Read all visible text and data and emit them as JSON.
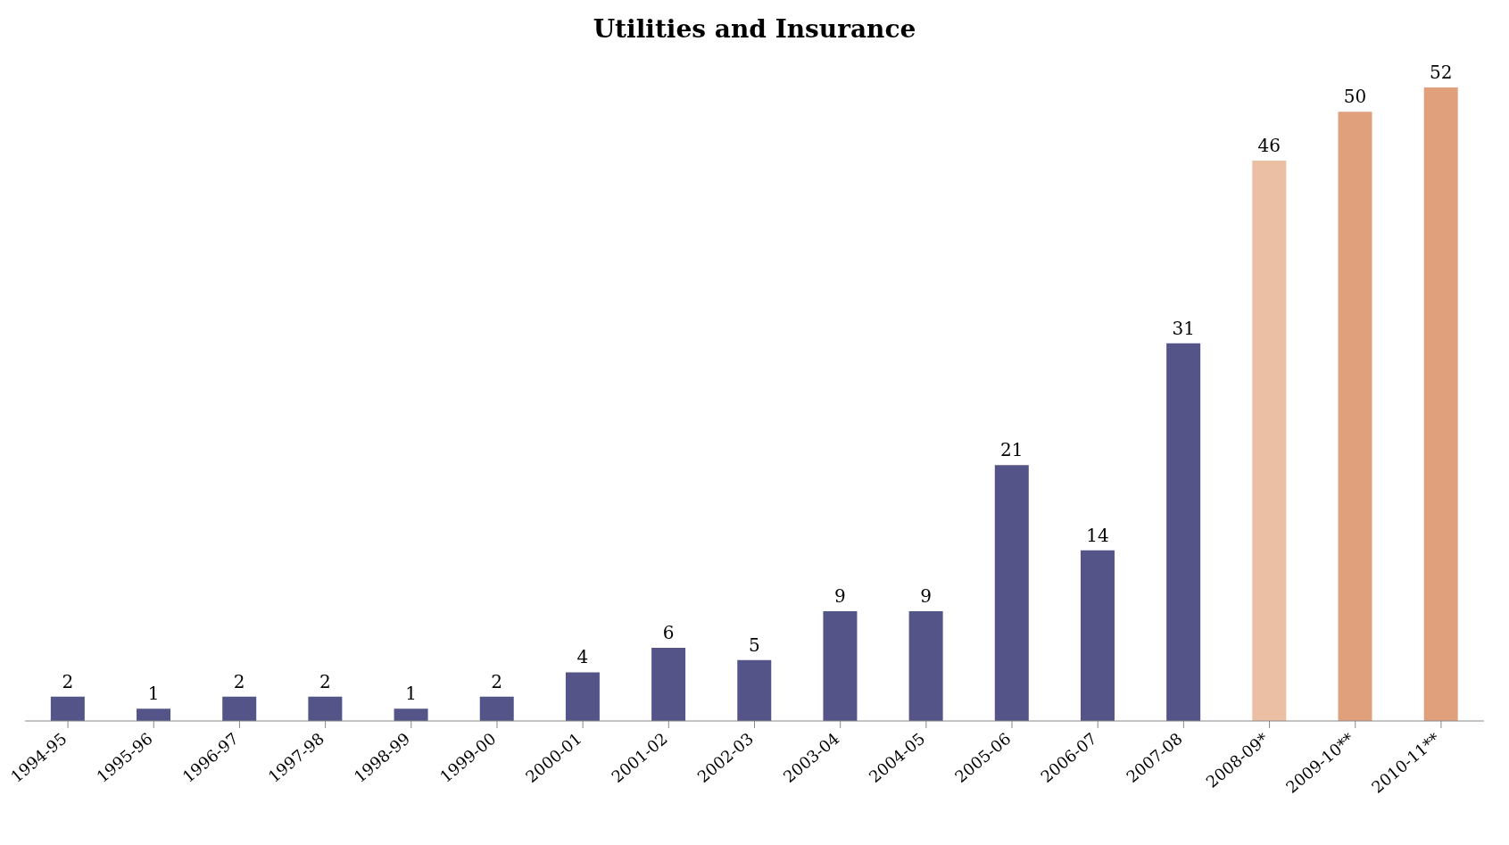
{
  "chart_data": {
    "type": "bar",
    "title": "Utilities and Insurance",
    "categories": [
      "1994-95",
      "1995-96",
      "1996-97",
      "1997-98",
      "1998-99",
      "1999-00",
      "2000-01",
      "2001-02",
      "2002-03",
      "2003-04",
      "2004-05",
      "2005-06",
      "2006-07",
      "2007-08",
      "2008-09*",
      "2009-10**",
      "2010-11**"
    ],
    "values": [
      2,
      1,
      2,
      2,
      1,
      2,
      4,
      6,
      5,
      9,
      9,
      21,
      14,
      31,
      46,
      50,
      52
    ],
    "colors": [
      "#545489",
      "#545489",
      "#545489",
      "#545489",
      "#545489",
      "#545489",
      "#545489",
      "#545489",
      "#545489",
      "#545489",
      "#545489",
      "#545489",
      "#545489",
      "#545489",
      "#ebbfa3",
      "#e0a07c",
      "#e0a07c"
    ],
    "data_labels": true,
    "grid": false,
    "legend": false
  }
}
